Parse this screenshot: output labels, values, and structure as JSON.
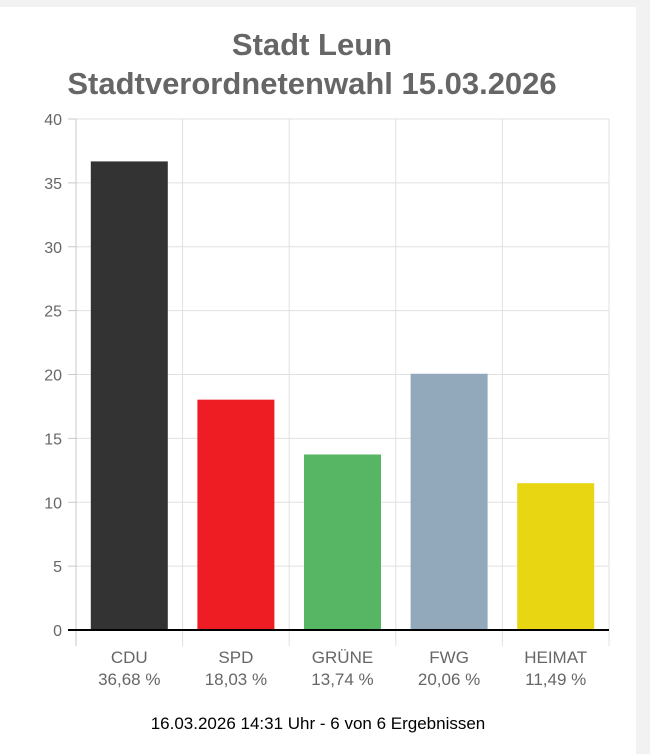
{
  "title_lines": [
    "Stadt Leun",
    "Stadtverordnetenwahl 15.03.2026"
  ],
  "footer": "16.03.2026 14:31 Uhr - 6 von 6 Ergebnissen",
  "chart_data": {
    "type": "bar",
    "categories": [
      "CDU",
      "SPD",
      "GRÜNE",
      "FWG",
      "HEIMAT"
    ],
    "values": [
      36.68,
      18.03,
      13.74,
      20.06,
      11.49
    ],
    "value_labels": [
      "36,68 %",
      "18,03 %",
      "13,74 %",
      "20,06 %",
      "11,49 %"
    ],
    "colors": [
      "#333333",
      "#ee1d24",
      "#57b664",
      "#92a8bb",
      "#e8d612"
    ],
    "ylim": [
      0,
      40
    ],
    "yticks": [
      0,
      5,
      10,
      15,
      20,
      25,
      30,
      35,
      40
    ],
    "grid": true,
    "title": "Stadt Leun Stadtverordnetenwahl 15.03.2026",
    "xlabel": "",
    "ylabel": ""
  }
}
